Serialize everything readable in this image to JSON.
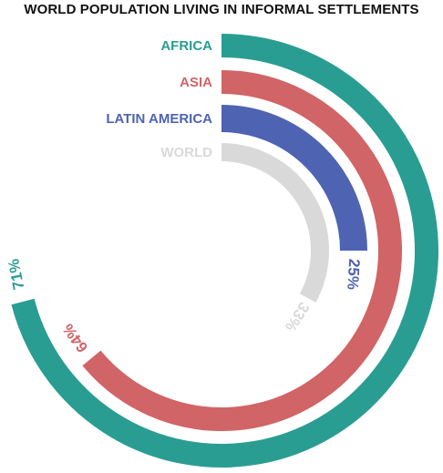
{
  "chart_data": {
    "type": "radial-bar",
    "title": "WORLD POPULATION LIVING IN INFORMAL SETTLEMENTS",
    "series": [
      {
        "name": "AFRICA",
        "value": 71,
        "label": "71%",
        "color": "#2a9d92"
      },
      {
        "name": "ASIA",
        "value": 64,
        "label": "64%",
        "color": "#d16466"
      },
      {
        "name": "LATIN AMERICA",
        "value": 25,
        "label": "25%",
        "color": "#4e63b2"
      },
      {
        "name": "WORLD",
        "value": 33,
        "label": "33%",
        "color": "#d9d9d9"
      }
    ],
    "max": 100,
    "legend": "left of ring starts"
  }
}
